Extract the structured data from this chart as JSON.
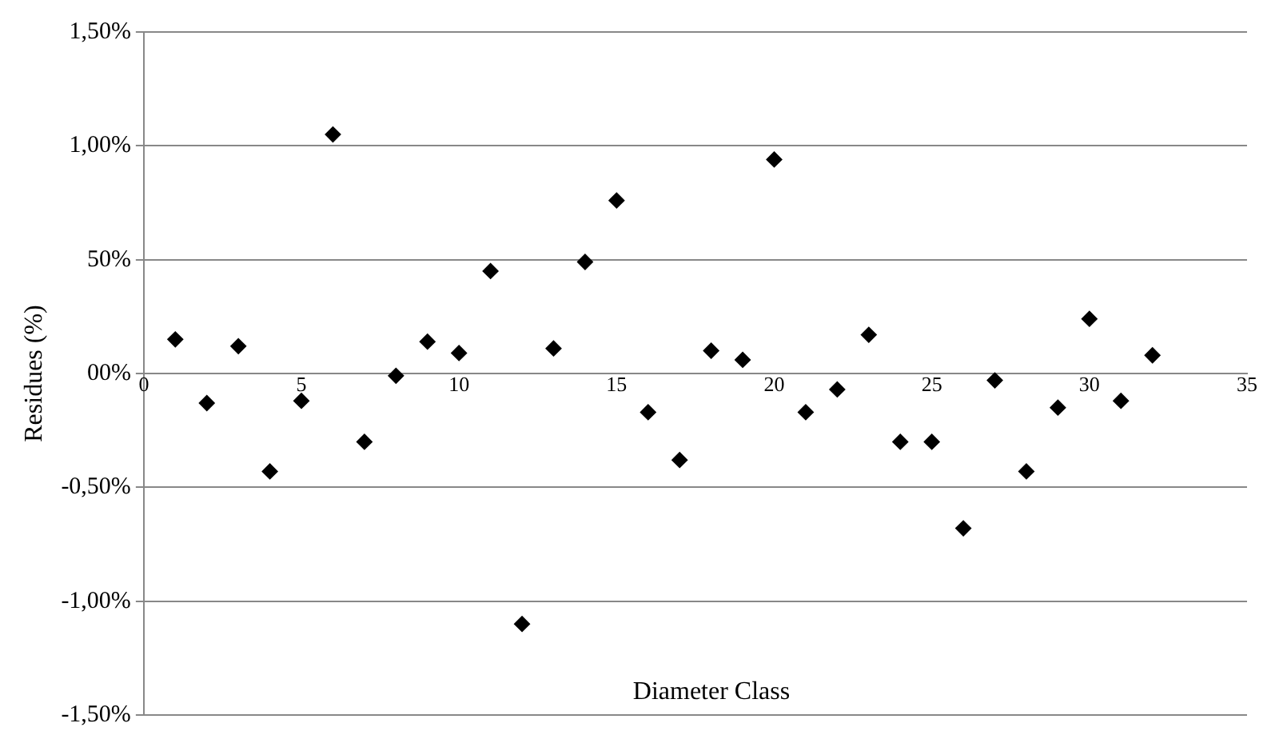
{
  "chart_data": {
    "type": "scatter",
    "xlabel": "Diameter Class",
    "ylabel": "Residues (%)",
    "x": [
      1,
      2,
      3,
      4,
      5,
      6,
      7,
      8,
      9,
      10,
      11,
      12,
      13,
      14,
      15,
      16,
      17,
      18,
      19,
      20,
      21,
      22,
      23,
      24,
      25,
      26,
      27,
      28,
      29,
      30,
      31,
      32
    ],
    "series": [
      {
        "color": "#000000",
        "values": [
          0.15,
          -0.13,
          0.12,
          -0.43,
          -0.12,
          1.05,
          -0.3,
          -0.01,
          0.14,
          0.09,
          0.45,
          -1.1,
          0.11,
          0.49,
          0.76,
          -0.17,
          -0.38,
          0.1,
          0.06,
          0.94,
          -0.17,
          -0.07,
          0.17,
          -0.3,
          -0.3,
          -0.68,
          -0.03,
          -0.43,
          -0.15,
          0.24,
          -0.12,
          0.08
        ]
      }
    ],
    "xlim": [
      0,
      35
    ],
    "xticks": [
      0,
      5,
      10,
      15,
      20,
      25,
      30,
      35
    ],
    "ylim": [
      -1.5,
      1.5
    ],
    "yticks": [
      {
        "value": -1.5,
        "label": "-1,50%"
      },
      {
        "value": -1,
        "label": "-1,00%"
      },
      {
        "value": -0.5,
        "label": "-0,50%"
      },
      {
        "value": 0,
        "label": "00%"
      },
      {
        "value": 0.5,
        "label": "50%"
      },
      {
        "value": 1,
        "label": "1,00%"
      },
      {
        "value": 1.5,
        "label": "1,50%"
      }
    ],
    "grid": "y",
    "legend": false,
    "marker": "diamond"
  }
}
